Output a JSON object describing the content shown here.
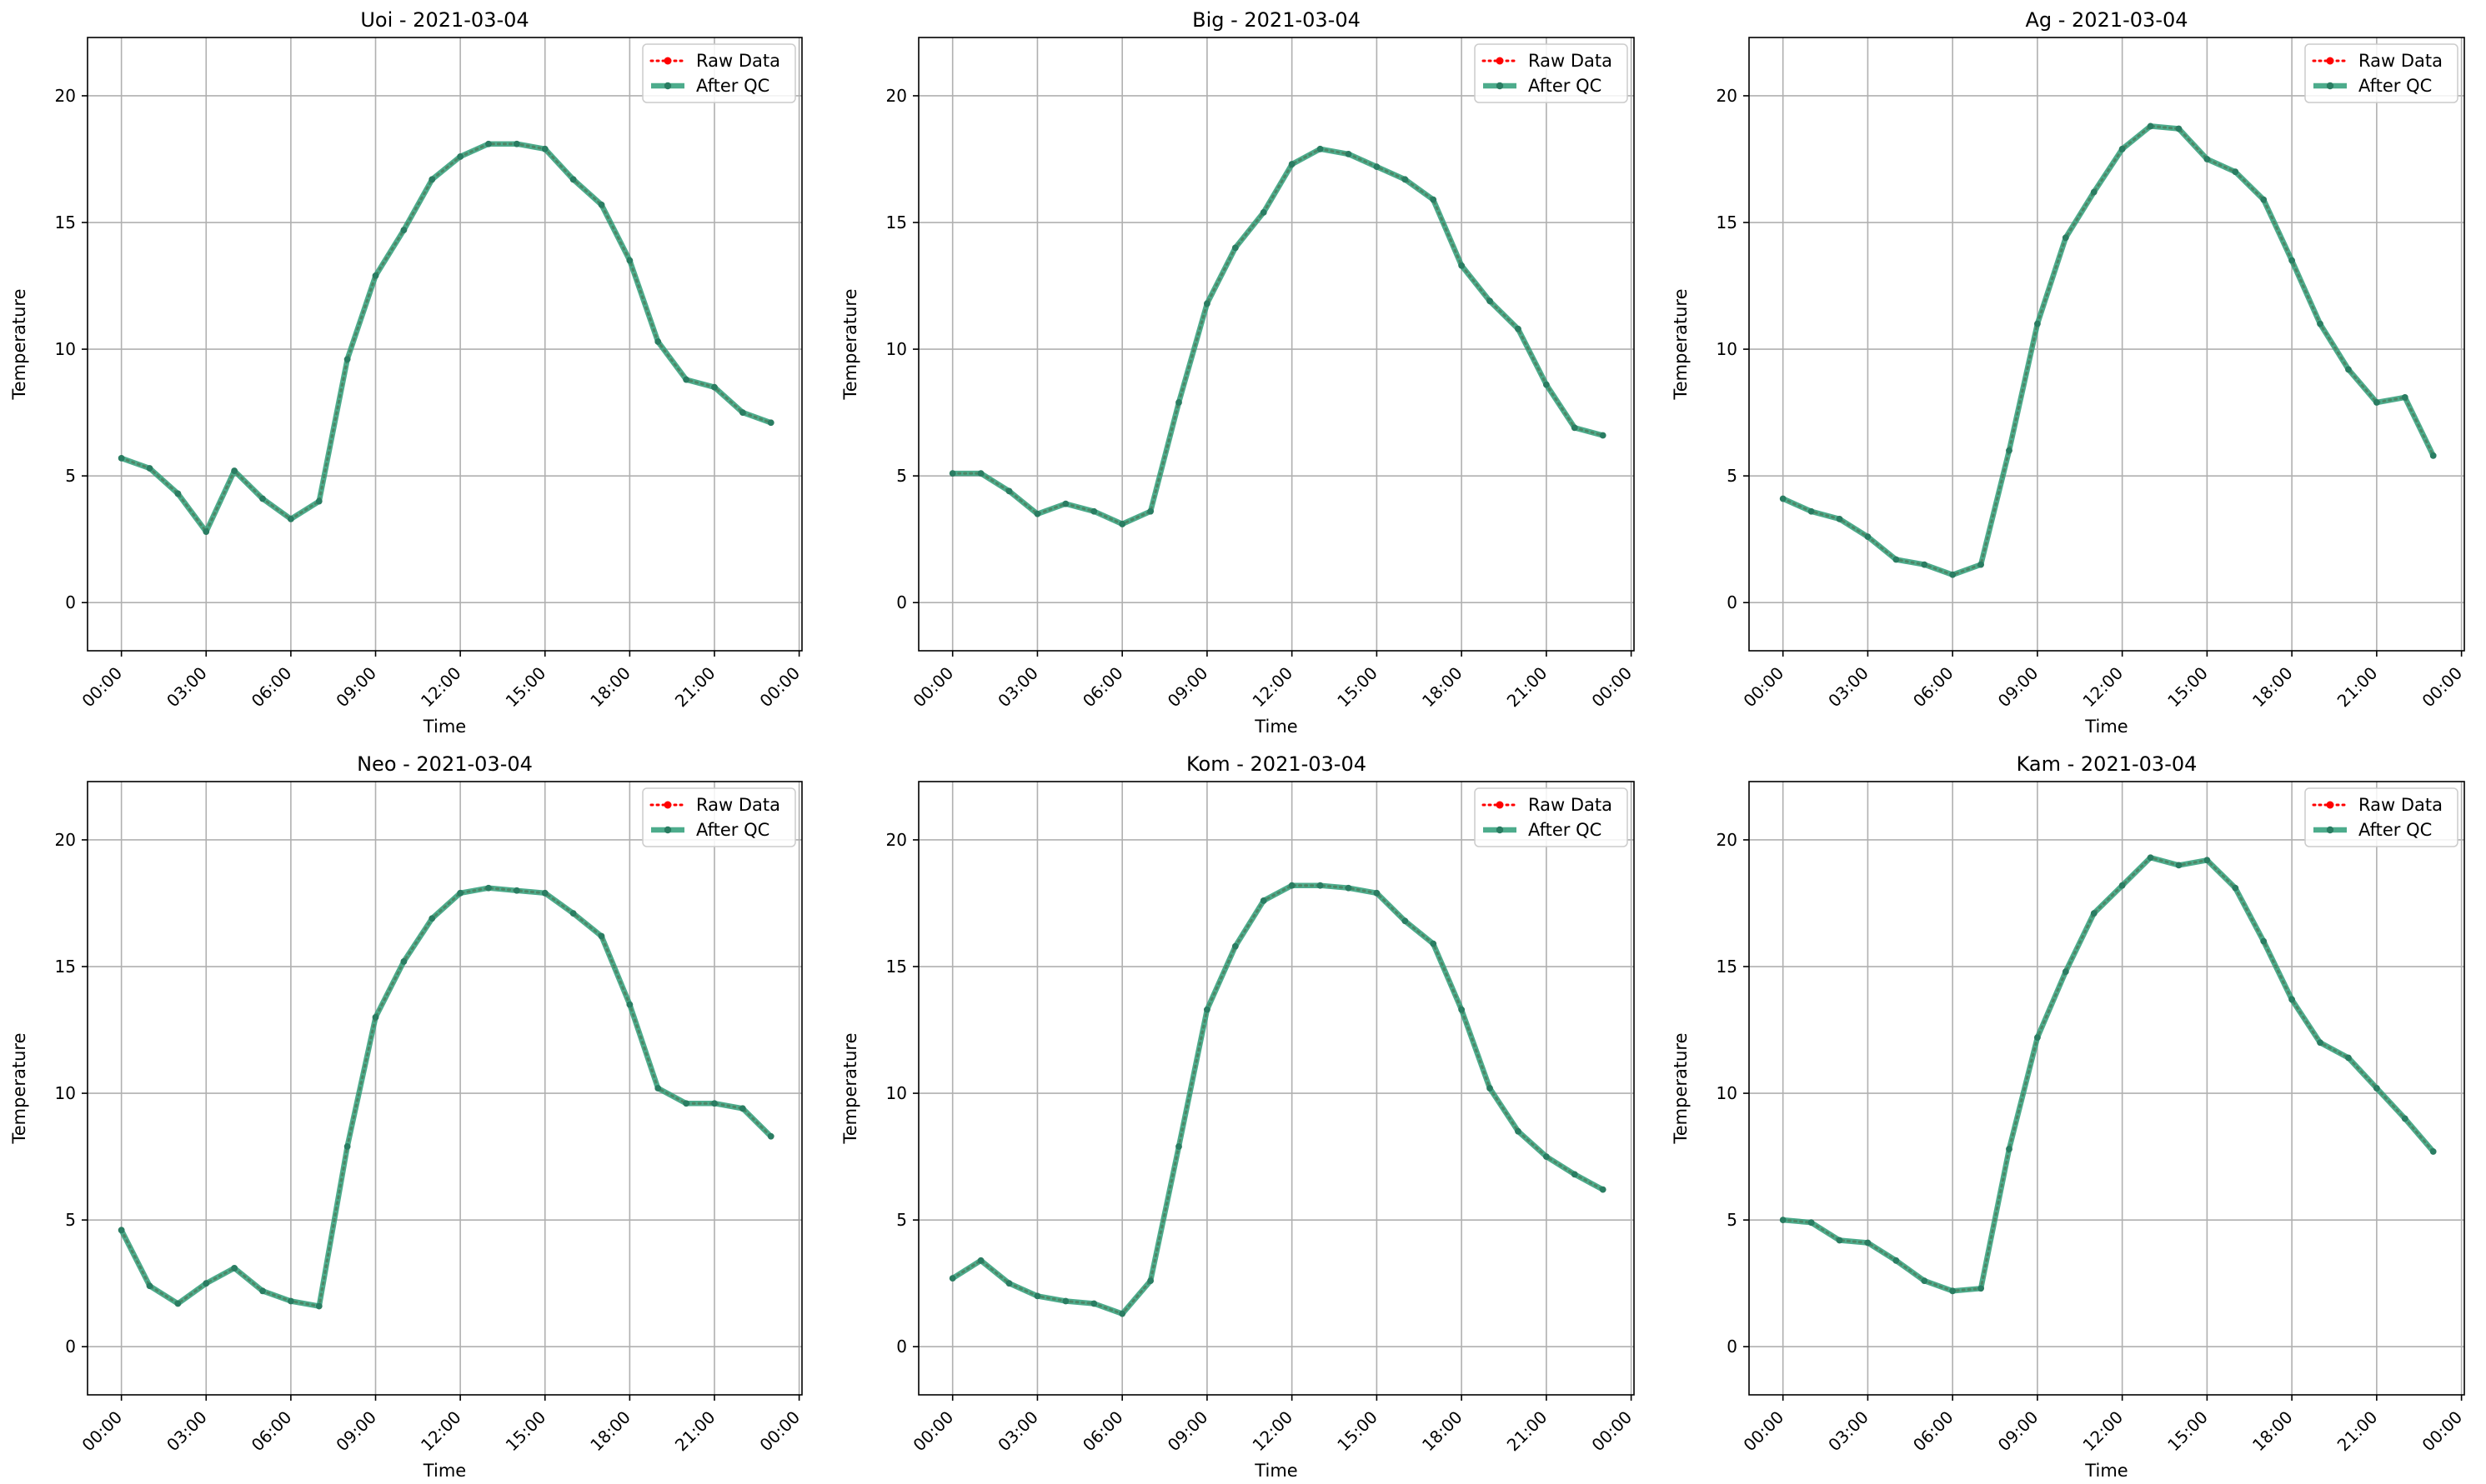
{
  "colors": {
    "raw": "#ff0000",
    "qc": "#2e9e78",
    "marker_qc": "#2a7d62",
    "grid": "#b0b0b0",
    "axis": "#000000"
  },
  "chart_data": [
    {
      "type": "line",
      "title": "Uoi - 2021-03-04",
      "xlabel": "Time",
      "ylabel": "Temperature",
      "x_ticks": [
        "00:00",
        "03:00",
        "06:00",
        "09:00",
        "12:00",
        "15:00",
        "18:00",
        "21:00",
        "00:00"
      ],
      "y_ticks": [
        "0",
        "5",
        "10",
        "15",
        "20"
      ],
      "xlim": [
        -1.2,
        24.1
      ],
      "ylim": [
        -1.9,
        22.3
      ],
      "grid": true,
      "legend": "top-right",
      "x_hours": [
        0,
        1,
        2,
        3,
        4,
        5,
        6,
        7,
        8,
        9,
        10,
        11,
        12,
        13,
        14,
        15,
        16,
        17,
        18,
        19,
        20,
        21,
        22,
        23
      ],
      "series": [
        {
          "name": "Raw Data",
          "style": "dotted",
          "values": [
            5.7,
            5.3,
            4.3,
            2.8,
            5.2,
            4.1,
            3.3,
            4.0,
            9.6,
            12.9,
            14.7,
            16.7,
            17.6,
            18.1,
            18.1,
            17.9,
            16.7,
            15.7,
            13.5,
            10.3,
            8.8,
            8.5,
            7.5,
            7.1
          ]
        },
        {
          "name": "After QC",
          "style": "solid",
          "values": [
            5.7,
            5.3,
            4.3,
            2.8,
            5.2,
            4.1,
            3.3,
            4.0,
            9.6,
            12.9,
            14.7,
            16.7,
            17.6,
            18.1,
            18.1,
            17.9,
            16.7,
            15.7,
            13.5,
            10.3,
            8.8,
            8.5,
            7.5,
            7.1
          ]
        }
      ]
    },
    {
      "type": "line",
      "title": "Big - 2021-03-04",
      "xlabel": "Time",
      "ylabel": "Temperature",
      "x_ticks": [
        "00:00",
        "03:00",
        "06:00",
        "09:00",
        "12:00",
        "15:00",
        "18:00",
        "21:00",
        "00:00"
      ],
      "y_ticks": [
        "0",
        "5",
        "10",
        "15",
        "20"
      ],
      "xlim": [
        -1.2,
        24.1
      ],
      "ylim": [
        -1.9,
        22.3
      ],
      "grid": true,
      "legend": "top-right",
      "x_hours": [
        0,
        1,
        2,
        3,
        4,
        5,
        6,
        7,
        8,
        9,
        10,
        11,
        12,
        13,
        14,
        15,
        16,
        17,
        18,
        19,
        20,
        21,
        22,
        23
      ],
      "series": [
        {
          "name": "Raw Data",
          "style": "dotted",
          "values": [
            5.1,
            5.1,
            4.4,
            3.5,
            3.9,
            3.6,
            3.1,
            3.6,
            7.9,
            11.8,
            14.0,
            15.4,
            17.3,
            17.9,
            17.7,
            17.2,
            16.7,
            15.9,
            13.3,
            11.9,
            10.8,
            8.6,
            6.9,
            6.6
          ]
        },
        {
          "name": "After QC",
          "style": "solid",
          "values": [
            5.1,
            5.1,
            4.4,
            3.5,
            3.9,
            3.6,
            3.1,
            3.6,
            7.9,
            11.8,
            14.0,
            15.4,
            17.3,
            17.9,
            17.7,
            17.2,
            16.7,
            15.9,
            13.3,
            11.9,
            10.8,
            8.6,
            6.9,
            6.6
          ]
        }
      ]
    },
    {
      "type": "line",
      "title": "Ag - 2021-03-04",
      "xlabel": "Time",
      "ylabel": "Temperature",
      "x_ticks": [
        "00:00",
        "03:00",
        "06:00",
        "09:00",
        "12:00",
        "15:00",
        "18:00",
        "21:00",
        "00:00"
      ],
      "y_ticks": [
        "0",
        "5",
        "10",
        "15",
        "20"
      ],
      "xlim": [
        -1.2,
        24.1
      ],
      "ylim": [
        -1.9,
        22.3
      ],
      "grid": true,
      "legend": "top-right",
      "x_hours": [
        0,
        1,
        2,
        3,
        4,
        5,
        6,
        7,
        8,
        9,
        10,
        11,
        12,
        13,
        14,
        15,
        16,
        17,
        18,
        19,
        20,
        21,
        22,
        23
      ],
      "series": [
        {
          "name": "Raw Data",
          "style": "dotted",
          "values": [
            4.1,
            3.6,
            3.3,
            2.6,
            1.7,
            1.5,
            1.1,
            1.5,
            6.0,
            11.0,
            14.4,
            16.2,
            17.9,
            18.8,
            18.7,
            17.5,
            17.0,
            15.9,
            13.5,
            11.0,
            9.2,
            7.9,
            8.1,
            5.8
          ]
        },
        {
          "name": "After QC",
          "style": "solid",
          "values": [
            4.1,
            3.6,
            3.3,
            2.6,
            1.7,
            1.5,
            1.1,
            1.5,
            6.0,
            11.0,
            14.4,
            16.2,
            17.9,
            18.8,
            18.7,
            17.5,
            17.0,
            15.9,
            13.5,
            11.0,
            9.2,
            7.9,
            8.1,
            5.8
          ]
        }
      ]
    },
    {
      "type": "line",
      "title": "Neo - 2021-03-04",
      "xlabel": "Time",
      "ylabel": "Temperature",
      "x_ticks": [
        "00:00",
        "03:00",
        "06:00",
        "09:00",
        "12:00",
        "15:00",
        "18:00",
        "21:00",
        "00:00"
      ],
      "y_ticks": [
        "0",
        "5",
        "10",
        "15",
        "20"
      ],
      "xlim": [
        -1.2,
        24.1
      ],
      "ylim": [
        -1.9,
        22.3
      ],
      "grid": true,
      "legend": "top-right",
      "x_hours": [
        0,
        1,
        2,
        3,
        4,
        5,
        6,
        7,
        8,
        9,
        10,
        11,
        12,
        13,
        14,
        15,
        16,
        17,
        18,
        19,
        20,
        21,
        22,
        23
      ],
      "series": [
        {
          "name": "Raw Data",
          "style": "dotted",
          "values": [
            4.6,
            2.4,
            1.7,
            2.5,
            3.1,
            2.2,
            1.8,
            1.6,
            7.9,
            13.0,
            15.2,
            16.9,
            17.9,
            18.1,
            18.0,
            17.9,
            17.1,
            16.2,
            13.5,
            10.2,
            9.6,
            9.6,
            9.4,
            8.3
          ]
        },
        {
          "name": "After QC",
          "style": "solid",
          "values": [
            4.6,
            2.4,
            1.7,
            2.5,
            3.1,
            2.2,
            1.8,
            1.6,
            7.9,
            13.0,
            15.2,
            16.9,
            17.9,
            18.1,
            18.0,
            17.9,
            17.1,
            16.2,
            13.5,
            10.2,
            9.6,
            9.6,
            9.4,
            8.3
          ]
        }
      ]
    },
    {
      "type": "line",
      "title": "Kom - 2021-03-04",
      "xlabel": "Time",
      "ylabel": "Temperature",
      "x_ticks": [
        "00:00",
        "03:00",
        "06:00",
        "09:00",
        "12:00",
        "15:00",
        "18:00",
        "21:00",
        "00:00"
      ],
      "y_ticks": [
        "0",
        "5",
        "10",
        "15",
        "20"
      ],
      "xlim": [
        -1.2,
        24.1
      ],
      "ylim": [
        -1.9,
        22.3
      ],
      "grid": true,
      "legend": "top-right",
      "x_hours": [
        0,
        1,
        2,
        3,
        4,
        5,
        6,
        7,
        8,
        9,
        10,
        11,
        12,
        13,
        14,
        15,
        16,
        17,
        18,
        19,
        20,
        21,
        22,
        23
      ],
      "series": [
        {
          "name": "Raw Data",
          "style": "dotted",
          "values": [
            2.7,
            3.4,
            2.5,
            2.0,
            1.8,
            1.7,
            1.3,
            2.6,
            7.9,
            13.3,
            15.8,
            17.6,
            18.2,
            18.2,
            18.1,
            17.9,
            16.8,
            15.9,
            13.3,
            10.2,
            8.5,
            7.5,
            6.8,
            6.2
          ]
        },
        {
          "name": "After QC",
          "style": "solid",
          "values": [
            2.7,
            3.4,
            2.5,
            2.0,
            1.8,
            1.7,
            1.3,
            2.6,
            7.9,
            13.3,
            15.8,
            17.6,
            18.2,
            18.2,
            18.1,
            17.9,
            16.8,
            15.9,
            13.3,
            10.2,
            8.5,
            7.5,
            6.8,
            6.2
          ]
        }
      ]
    },
    {
      "type": "line",
      "title": "Kam - 2021-03-04",
      "xlabel": "Time",
      "ylabel": "Temperature",
      "x_ticks": [
        "00:00",
        "03:00",
        "06:00",
        "09:00",
        "12:00",
        "15:00",
        "18:00",
        "21:00",
        "00:00"
      ],
      "y_ticks": [
        "0",
        "5",
        "10",
        "15",
        "20"
      ],
      "xlim": [
        -1.2,
        24.1
      ],
      "ylim": [
        -1.9,
        22.3
      ],
      "grid": true,
      "legend": "top-right",
      "x_hours": [
        0,
        1,
        2,
        3,
        4,
        5,
        6,
        7,
        8,
        9,
        10,
        11,
        12,
        13,
        14,
        15,
        16,
        17,
        18,
        19,
        20,
        21,
        22,
        23
      ],
      "series": [
        {
          "name": "Raw Data",
          "style": "dotted",
          "values": [
            5.0,
            4.9,
            4.2,
            4.1,
            3.4,
            2.6,
            2.2,
            2.3,
            7.8,
            12.2,
            14.8,
            17.1,
            18.2,
            19.3,
            19.0,
            19.2,
            18.1,
            16.0,
            13.7,
            12.0,
            11.4,
            10.2,
            9.0,
            7.7
          ]
        },
        {
          "name": "After QC",
          "style": "solid",
          "values": [
            5.0,
            4.9,
            4.2,
            4.1,
            3.4,
            2.6,
            2.2,
            2.3,
            7.8,
            12.2,
            14.8,
            17.1,
            18.2,
            19.3,
            19.0,
            19.2,
            18.1,
            16.0,
            13.7,
            12.0,
            11.4,
            10.2,
            9.0,
            7.7
          ]
        }
      ]
    }
  ]
}
